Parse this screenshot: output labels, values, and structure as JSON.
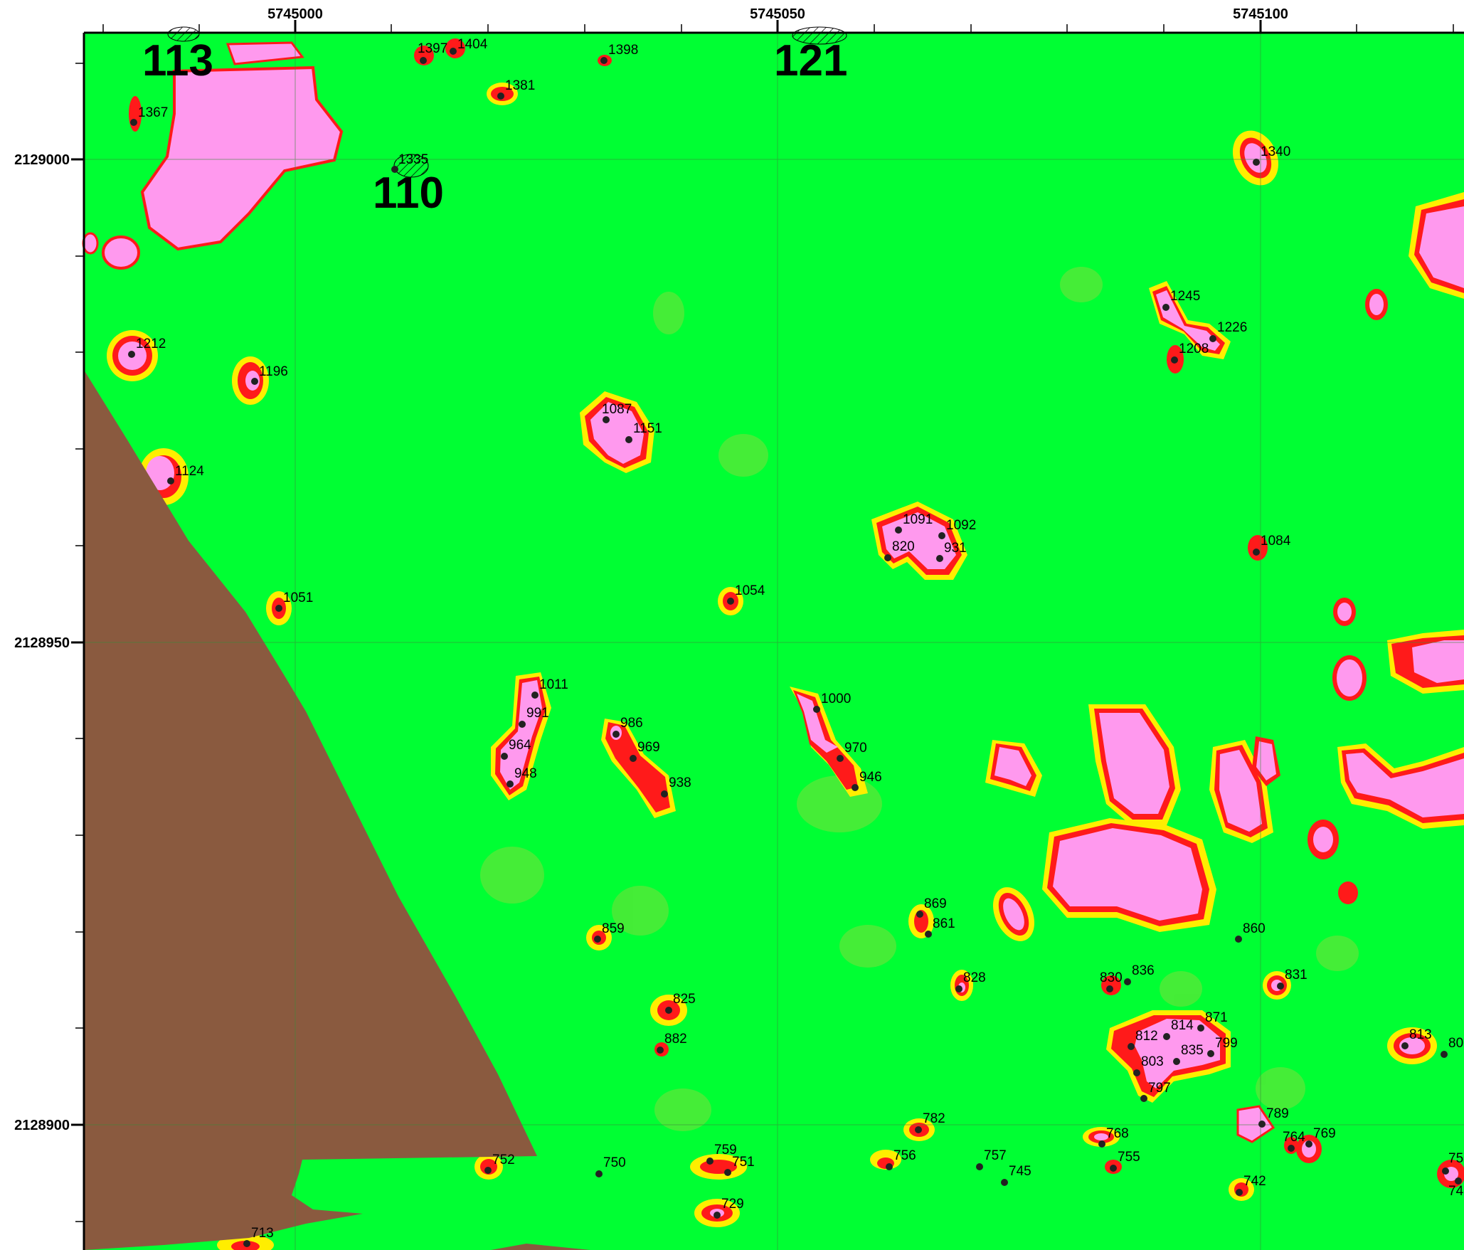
{
  "axis": {
    "x_ticks": [
      "5745000",
      "5745050",
      "5745100"
    ],
    "y_ticks": [
      "2129000",
      "2128950",
      "2128900"
    ]
  },
  "colors": {
    "background": "#00ff33",
    "anomaly_high": "#ff99ee",
    "anomaly_mid": "#ff1a1a",
    "anomaly_low": "#ffee00",
    "no_data": "#8a5a3f",
    "grid": "#3a8a3a"
  },
  "zone_labels": [
    {
      "id": "z113",
      "text": "113"
    },
    {
      "id": "z110",
      "text": "110"
    },
    {
      "id": "z121",
      "text": "121"
    }
  ],
  "points": [
    {
      "id": "1397",
      "label": "1397"
    },
    {
      "id": "1404",
      "label": "1404"
    },
    {
      "id": "1398",
      "label": "1398"
    },
    {
      "id": "1381",
      "label": "1381"
    },
    {
      "id": "1367",
      "label": "1367"
    },
    {
      "id": "1335",
      "label": "1335"
    },
    {
      "id": "1340",
      "label": "1340"
    },
    {
      "id": "1245",
      "label": "1245"
    },
    {
      "id": "1226",
      "label": "1226"
    },
    {
      "id": "1208",
      "label": "1208"
    },
    {
      "id": "1212",
      "label": "1212"
    },
    {
      "id": "1196",
      "label": "1196"
    },
    {
      "id": "1087",
      "label": "1087"
    },
    {
      "id": "1151",
      "label": "1151"
    },
    {
      "id": "1124",
      "label": "1124"
    },
    {
      "id": "1091",
      "label": "1091"
    },
    {
      "id": "1092",
      "label": "1092"
    },
    {
      "id": "820",
      "label": "820"
    },
    {
      "id": "931",
      "label": "931"
    },
    {
      "id": "1084",
      "label": "1084"
    },
    {
      "id": "1054",
      "label": "1054"
    },
    {
      "id": "1051",
      "label": "1051"
    },
    {
      "id": "1011",
      "label": "1011"
    },
    {
      "id": "991",
      "label": "991"
    },
    {
      "id": "964",
      "label": "964"
    },
    {
      "id": "948",
      "label": "948"
    },
    {
      "id": "986",
      "label": "986"
    },
    {
      "id": "969",
      "label": "969"
    },
    {
      "id": "938",
      "label": "938"
    },
    {
      "id": "1000",
      "label": "1000"
    },
    {
      "id": "970",
      "label": "970"
    },
    {
      "id": "946",
      "label": "946"
    },
    {
      "id": "869",
      "label": "869"
    },
    {
      "id": "861",
      "label": "861"
    },
    {
      "id": "859",
      "label": "859"
    },
    {
      "id": "860",
      "label": "860"
    },
    {
      "id": "828",
      "label": "828"
    },
    {
      "id": "830",
      "label": "830"
    },
    {
      "id": "836",
      "label": "836"
    },
    {
      "id": "831",
      "label": "831"
    },
    {
      "id": "825",
      "label": "825"
    },
    {
      "id": "882",
      "label": "882"
    },
    {
      "id": "814",
      "label": "814"
    },
    {
      "id": "871",
      "label": "871"
    },
    {
      "id": "812",
      "label": "812"
    },
    {
      "id": "799",
      "label": "799"
    },
    {
      "id": "835",
      "label": "835"
    },
    {
      "id": "803",
      "label": "803"
    },
    {
      "id": "797",
      "label": "797"
    },
    {
      "id": "813",
      "label": "813"
    },
    {
      "id": "807",
      "label": "80"
    },
    {
      "id": "789",
      "label": "789"
    },
    {
      "id": "764",
      "label": "764"
    },
    {
      "id": "769",
      "label": "769"
    },
    {
      "id": "782",
      "label": "782"
    },
    {
      "id": "768",
      "label": "768"
    },
    {
      "id": "755",
      "label": "755"
    },
    {
      "id": "756",
      "label": "756"
    },
    {
      "id": "757",
      "label": "757"
    },
    {
      "id": "745",
      "label": "745"
    },
    {
      "id": "759",
      "label": "759"
    },
    {
      "id": "751",
      "label": "751"
    },
    {
      "id": "750",
      "label": "750"
    },
    {
      "id": "752",
      "label": "752"
    },
    {
      "id": "729",
      "label": "729"
    },
    {
      "id": "742",
      "label": "742"
    },
    {
      "id": "713",
      "label": "713"
    },
    {
      "id": "75x",
      "label": "75"
    },
    {
      "id": "74x",
      "label": "74"
    }
  ]
}
